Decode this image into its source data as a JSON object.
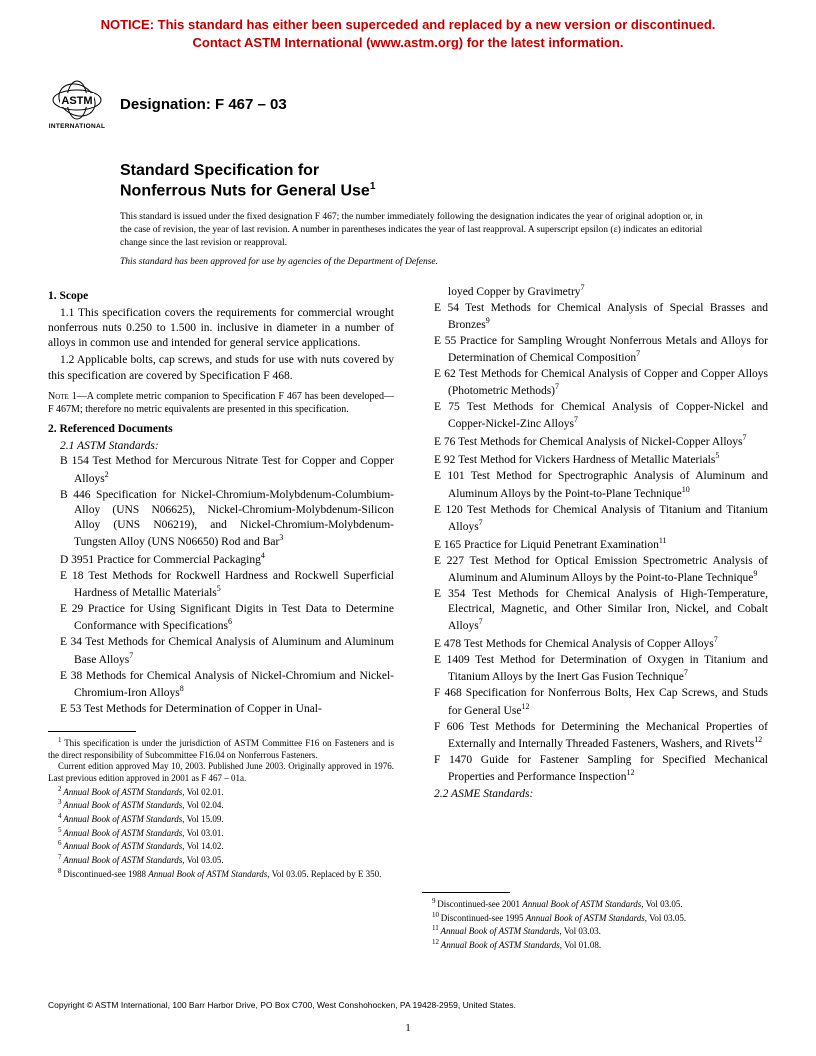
{
  "notice": {
    "line1": "NOTICE: This standard has either been superceded and replaced by a new version or discontinued.",
    "line2": "Contact ASTM International (www.astm.org) for the latest information."
  },
  "logo_label": "INTERNATIONAL",
  "designation": "Designation: F 467 – 03",
  "title": {
    "line1": "Standard Specification for",
    "line2_pre": "Nonferrous Nuts for General Use",
    "sup": "1"
  },
  "issuance": {
    "text": "This standard is issued under the fixed designation F 467; the number immediately following the designation indicates the year of original adoption or, in the case of revision, the year of last revision. A number in parentheses indicates the year of last reapproval. A superscript epsilon (ε) indicates an editorial change since the last revision or reapproval.",
    "approved": "This standard has been approved for use by agencies of the Department of Defense."
  },
  "scope": {
    "head": "1. Scope",
    "p1": "1.1 This specification covers the requirements for commercial wrought nonferrous nuts 0.250 to 1.500 in. inclusive in diameter in a number of alloys in common use and intended for general service applications.",
    "p2": "1.2 Applicable bolts, cap screws, and studs for use with nuts covered by this specification are covered by Specification F 468.",
    "note_label": "Note 1—",
    "note": "A complete metric companion to Specification F 467 has been developed—F 467M; therefore no metric equivalents are presented in this specification."
  },
  "refdocs": {
    "head": "2. Referenced Documents",
    "sub1": "2.1 ASTM Standards:",
    "left": [
      {
        "t": "B 154 Test Method for Mercurous Nitrate Test for Copper and Copper Alloys",
        "s": "2"
      },
      {
        "t": "B 446 Specification for Nickel-Chromium-Molybdenum-Columbium-Alloy (UNS N06625), Nickel-Chromium-Molybdenum-Silicon Alloy (UNS N06219), and Nickel-Chromium-Molybdenum-Tungsten Alloy (UNS N06650) Rod and Bar",
        "s": "3"
      },
      {
        "t": "D 3951 Practice for Commercial Packaging",
        "s": "4"
      },
      {
        "t": "E 18 Test Methods for Rockwell Hardness and Rockwell Superficial Hardness of Metallic Materials",
        "s": "5"
      },
      {
        "t": "E 29 Practice for Using Significant Digits in Test Data to Determine Conformance with Specifications",
        "s": "6"
      },
      {
        "t": "E 34 Test Methods for Chemical Analysis of Aluminum and Aluminum Base Alloys",
        "s": "7"
      },
      {
        "t": "E 38 Methods for Chemical Analysis of Nickel-Chromium and Nickel-Chromium-Iron Alloys",
        "s": "8"
      },
      {
        "t": "E 53 Test Methods for Determination of Copper in Unal-",
        "s": ""
      }
    ],
    "right_first": {
      "t": "loyed Copper by Gravimetry",
      "s": "7"
    },
    "right": [
      {
        "t": "E 54 Test Methods for Chemical Analysis of Special Brasses and Bronzes",
        "s": "9"
      },
      {
        "t": "E 55 Practice for Sampling Wrought Nonferrous Metals and Alloys for Determination of Chemical Composition",
        "s": "7"
      },
      {
        "t": "E 62 Test Methods for Chemical Analysis of Copper and Copper Alloys (Photometric Methods)",
        "s": "7"
      },
      {
        "t": "E 75 Test Methods for Chemical Analysis of Copper-Nickel and Copper-Nickel-Zinc Alloys",
        "s": "7"
      },
      {
        "t": "E 76 Test Methods for Chemical Analysis of Nickel-Copper Alloys",
        "s": "7"
      },
      {
        "t": "E 92 Test Method for Vickers Hardness of Metallic Materials",
        "s": "5"
      },
      {
        "t": "E 101 Test Method for Spectrographic Analysis of Aluminum and Aluminum Alloys by the Point-to-Plane Technique",
        "s": "10"
      },
      {
        "t": "E 120 Test Methods for Chemical Analysis of Titanium and Titanium Alloys",
        "s": "7"
      },
      {
        "t": "E 165 Practice for Liquid Penetrant Examination",
        "s": "11"
      },
      {
        "t": "E 227 Test Method for Optical Emission Spectrometric Analysis of Aluminum and Aluminum Alloys by the Point-to-Plane Technique",
        "s": "9"
      },
      {
        "t": "E 354 Test Methods for Chemical Analysis of High-Temperature, Electrical, Magnetic, and Other Similar Iron, Nickel, and Cobalt Alloys",
        "s": "7"
      },
      {
        "t": "E 478 Test Methods for Chemical Analysis of Copper Alloys",
        "s": "7"
      },
      {
        "t": "E 1409 Test Method for Determination of Oxygen in Titanium and Titanium Alloys by the Inert Gas Fusion Technique",
        "s": "7"
      },
      {
        "t": "F 468 Specification for Nonferrous Bolts, Hex Cap Screws, and Studs for General Use",
        "s": "12"
      },
      {
        "t": "F 606 Test Methods for Determining the Mechanical Properties of Externally and Internally Threaded Fasteners, Washers, and Rivets",
        "s": "12"
      },
      {
        "t": "F 1470 Guide for Fastener Sampling for Specified Mechanical Properties and Performance Inspection",
        "s": "12"
      }
    ],
    "sub2": "2.2 ASME Standards:"
  },
  "footnotes_left": [
    {
      "s": "1",
      "t": "This specification is under the jurisdiction of ASTM Committee F16 on Fasteners and is the direct responsibility of Subcommittee F16.04 on Nonferrous Fasteners."
    },
    {
      "s": "",
      "t": "Current edition approved May 10, 2003. Published June 2003. Originally approved in 1976. Last previous edition approved in 2001 as F 467 – 01a."
    },
    {
      "s": "2",
      "t": "Annual Book of ASTM Standards, Vol 02.01.",
      "i": true
    },
    {
      "s": "3",
      "t": "Annual Book of ASTM Standards, Vol 02.04.",
      "i": true
    },
    {
      "s": "4",
      "t": "Annual Book of ASTM Standards, Vol 15.09.",
      "i": true
    },
    {
      "s": "5",
      "t": "Annual Book of ASTM Standards, Vol 03.01.",
      "i": true
    },
    {
      "s": "6",
      "t": "Annual Book of ASTM Standards, Vol 14.02.",
      "i": true
    },
    {
      "s": "7",
      "t": "Annual Book of ASTM Standards, Vol 03.05.",
      "i": true
    },
    {
      "s": "8",
      "t": "Discontinued-see 1988 Annual Book of ASTM Standards, Vol 03.05. Replaced by E 350.",
      "i": true
    }
  ],
  "footnotes_right": [
    {
      "s": "9",
      "t": "Discontinued-see 2001 Annual Book of ASTM Standards, Vol 03.05.",
      "i": true
    },
    {
      "s": "10",
      "t": "Discontinued-see 1995 Annual Book of ASTM Standards, Vol 03.05.",
      "i": true
    },
    {
      "s": "11",
      "t": "Annual Book of ASTM Standards, Vol 03.03.",
      "i": true
    },
    {
      "s": "12",
      "t": "Annual Book of ASTM Standards, Vol 01.08.",
      "i": true
    }
  ],
  "copyright": "Copyright © ASTM International, 100 Barr Harbor Drive, PO Box C700, West Conshohocken, PA 19428-2959, United States.",
  "page": "1"
}
